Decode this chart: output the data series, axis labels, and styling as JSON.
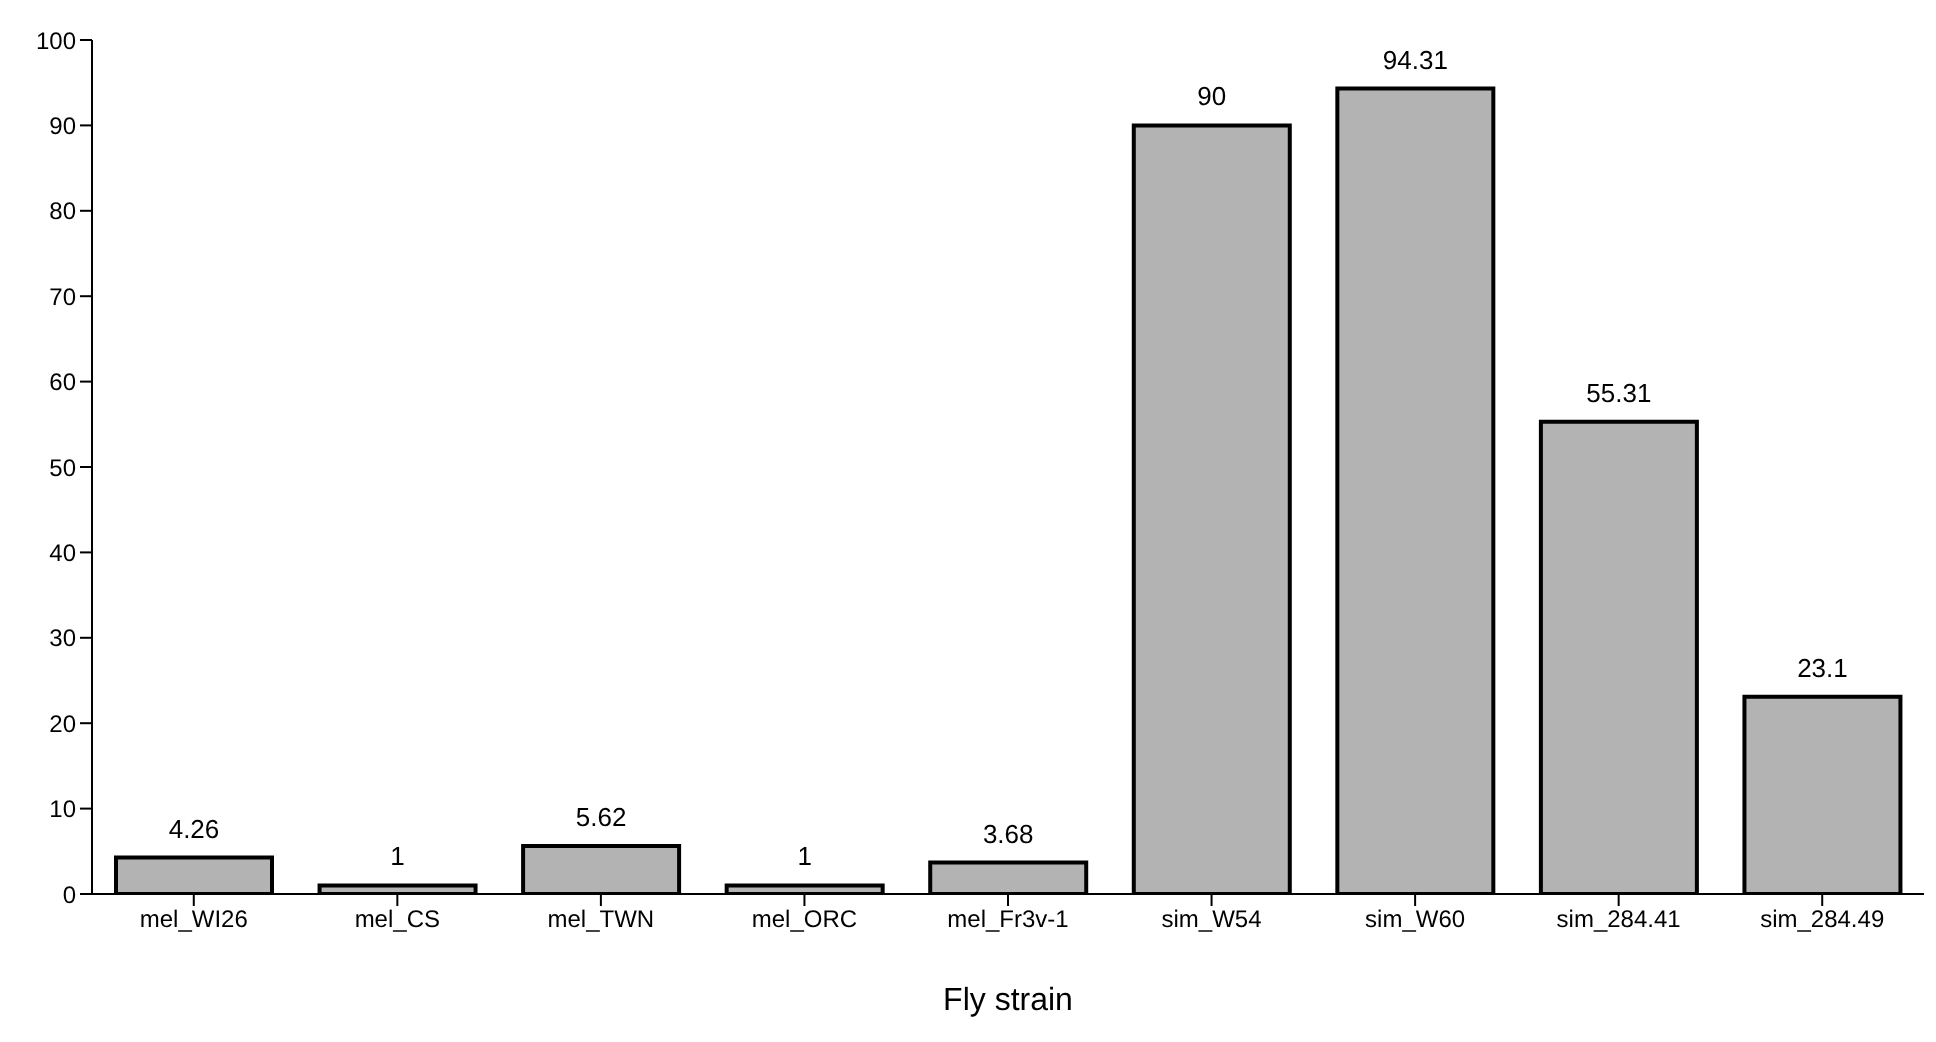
{
  "chart_data": {
    "type": "bar",
    "xlabel": "Fly strain",
    "categories": [
      "mel_WI26",
      "mel_CS",
      "mel_TWN",
      "mel_ORC",
      "mel_Fr3v-1",
      "sim_W54",
      "sim_W60",
      "sim_284.41",
      "sim_284.49"
    ],
    "values": [
      4.26,
      1,
      5.62,
      1,
      3.68,
      90,
      94.31,
      55.31,
      23.1
    ],
    "color": "#b3b3b3",
    "ylim": [
      0,
      100
    ],
    "yticks": [
      0,
      10,
      20,
      30,
      40,
      50,
      60,
      70,
      80,
      90,
      100
    ],
    "grid": false,
    "data_labels": true
  }
}
